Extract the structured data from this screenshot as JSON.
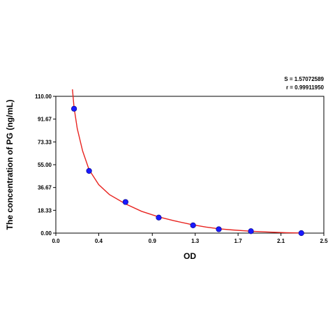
{
  "chart_data": {
    "type": "scatter",
    "xlabel": "OD",
    "ylabel": "The concentration of PG (ng/mL)",
    "xlim": [
      0,
      2.5
    ],
    "ylim": [
      0,
      110
    ],
    "x_ticks": [
      "0.0",
      "0.4",
      "0.9",
      "1.3",
      "1.7",
      "2.1",
      "2.5"
    ],
    "y_ticks": [
      "0.00",
      "18.33",
      "36.67",
      "55.00",
      "73.33",
      "91.67",
      "110.00"
    ],
    "grid": false,
    "stats": {
      "s": "S = 1.57072589",
      "r": "r = 0.99911950"
    },
    "series": [
      {
        "kind": "points",
        "color": "#1a1aff",
        "x": [
          0.17,
          0.31,
          0.65,
          0.96,
          1.28,
          1.52,
          1.82,
          2.29
        ],
        "y": [
          100,
          50,
          25,
          12.5,
          6.25,
          3.12,
          1.56,
          0
        ]
      },
      {
        "kind": "fit-curve",
        "color": "#e8231f",
        "x": [
          0.155,
          0.17,
          0.2,
          0.25,
          0.31,
          0.4,
          0.5,
          0.65,
          0.8,
          0.96,
          1.1,
          1.28,
          1.4,
          1.52,
          1.65,
          1.82,
          2.0,
          2.15,
          2.29
        ],
        "y": [
          117,
          101,
          84,
          66,
          51,
          39,
          31,
          23.5,
          17.5,
          13,
          10,
          6.6,
          4.9,
          3.5,
          2.5,
          1.5,
          0.8,
          0.35,
          0.1
        ]
      }
    ]
  }
}
